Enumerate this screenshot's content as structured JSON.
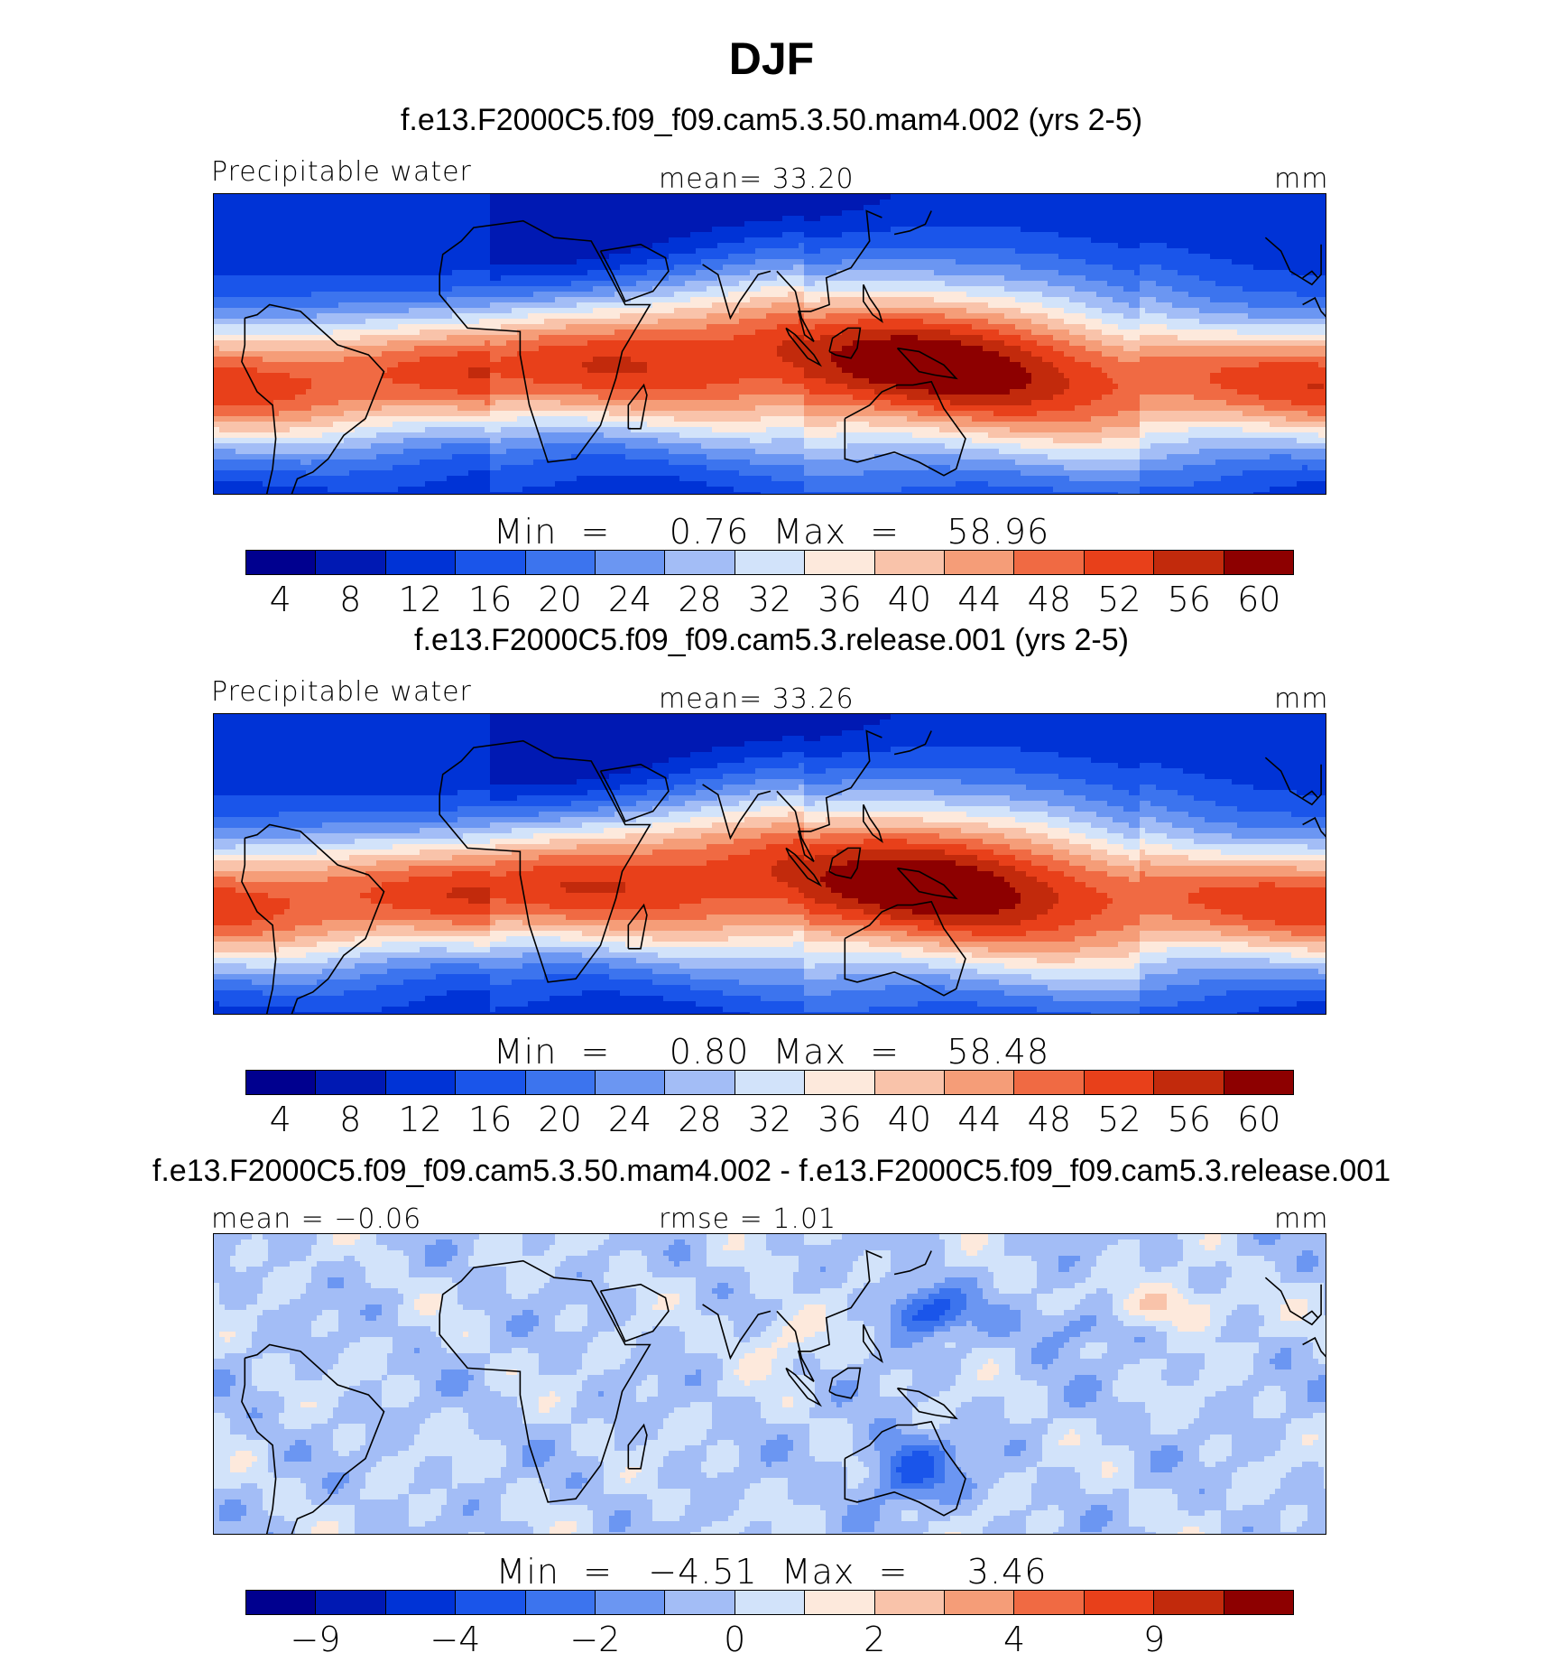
{
  "title": "DJF",
  "panels": [
    {
      "case_title": "f.e13.F2000C5.f09_f09.cam5.3.50.mam4.002 (yrs 2-5)",
      "left_label": "Precipitable water",
      "center_label": "mean=   33.20",
      "units": "mm",
      "minmax": "Min  =     0.76  Max  =    58.96",
      "field": "abs",
      "variant": 0,
      "colorbar_ticks": [
        "4",
        "8",
        "12",
        "16",
        "20",
        "24",
        "28",
        "32",
        "36",
        "40",
        "44",
        "48",
        "52",
        "56",
        "60"
      ]
    },
    {
      "case_title": "f.e13.F2000C5.f09_f09.cam5.3.release.001 (yrs 2-5)",
      "left_label": "Precipitable water",
      "center_label": "mean=   33.26",
      "units": "mm",
      "minmax": "Min  =     0.80  Max  =    58.48",
      "field": "abs",
      "variant": 1,
      "colorbar_ticks": [
        "4",
        "8",
        "12",
        "16",
        "20",
        "24",
        "28",
        "32",
        "36",
        "40",
        "44",
        "48",
        "52",
        "56",
        "60"
      ]
    },
    {
      "case_title": "f.e13.F2000C5.f09_f09.cam5.3.50.mam4.002 - f.e13.F2000C5.f09_f09.cam5.3.release.001",
      "left_label": "mean  =   −0.06",
      "center_label": "rmse  =    1.01",
      "units": "mm",
      "minmax": "Min  =   −4.51  Max  =     3.46",
      "field": "diff",
      "variant": 2,
      "colorbar_ticks": [
        "−9",
        "−4",
        "−2",
        "0",
        "2",
        "4",
        "9"
      ]
    }
  ],
  "colorbar_colors": [
    "#00008f",
    "#0019b3",
    "#0033d6",
    "#1a55ea",
    "#3c74ee",
    "#6b96f2",
    "#a3bdf6",
    "#d2e3fa",
    "#fde9dc",
    "#f9c3aa",
    "#f59d78",
    "#f06a43",
    "#e8401a",
    "#c22a0c",
    "#8d0000"
  ],
  "icons": {
    "coastline": "coastline-outline"
  }
}
